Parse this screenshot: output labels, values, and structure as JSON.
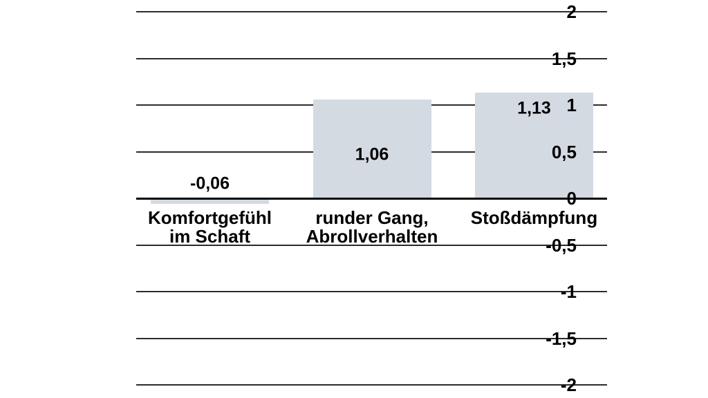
{
  "chart_data": {
    "type": "bar",
    "title": "",
    "xlabel": "",
    "ylabel": "",
    "categories": [
      [
        "Komfortgefühl",
        "im Schaft"
      ],
      [
        "runder Gang,",
        "Abrollverhalten"
      ],
      [
        "Stoßdämpfung"
      ]
    ],
    "values": [
      -0.06,
      1.06,
      1.13
    ],
    "value_labels": [
      "-0,06",
      "1,06",
      "1,13"
    ],
    "y_ticks": [
      2,
      1.5,
      1,
      0.5,
      0,
      -0.5,
      -1,
      -1.5,
      -2
    ],
    "y_tick_labels": [
      "2",
      "1,5",
      "1",
      "0,5",
      "0",
      "-0,5",
      "-1",
      "-1,5",
      "-2"
    ],
    "ylim": [
      -2,
      2
    ],
    "grid": true,
    "legend": false,
    "colors": {
      "bar": "#d4dae2",
      "gridline": "#2b2b2b",
      "zero_line": "#000000",
      "text": "#000000",
      "background": "#ffffff"
    }
  }
}
